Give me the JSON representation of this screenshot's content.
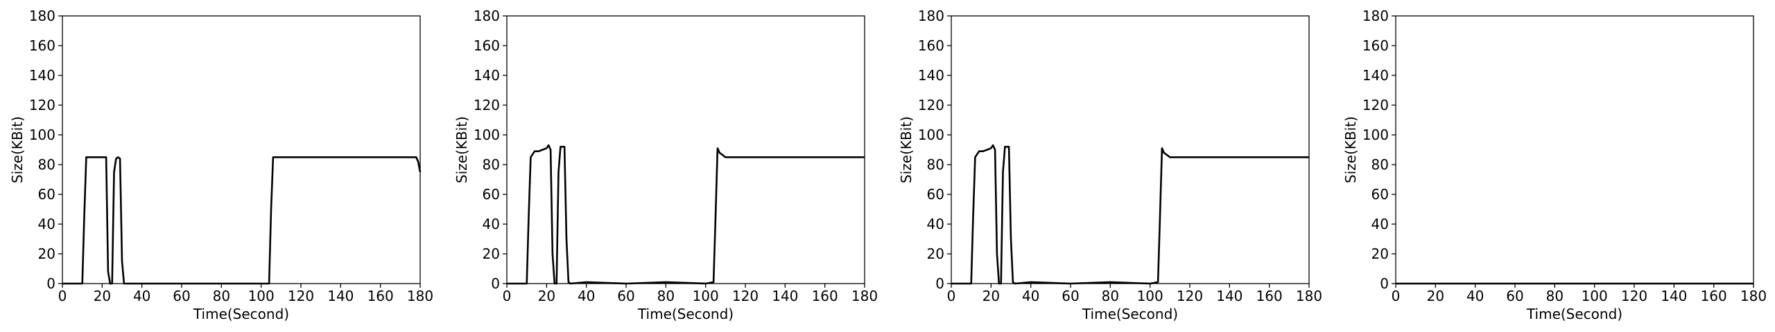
{
  "chart_data": [
    {
      "type": "line",
      "xlabel": "Time(Second)",
      "ylabel": "Size(KBit)",
      "xlim": [
        0,
        180
      ],
      "ylim": [
        0,
        180
      ],
      "xticks": [
        0,
        20,
        40,
        60,
        80,
        100,
        120,
        140,
        160,
        180
      ],
      "yticks": [
        0,
        20,
        40,
        60,
        80,
        100,
        120,
        140,
        160,
        180
      ],
      "grid": false,
      "line_color": "#000000",
      "series": [
        {
          "x": [
            0,
            10,
            11,
            12,
            13,
            16,
            20,
            22,
            23,
            24,
            25,
            26,
            27,
            28,
            29,
            30,
            31,
            32,
            40,
            60,
            80,
            100,
            104,
            105,
            106,
            108,
            120,
            140,
            160,
            178,
            179,
            180
          ],
          "y": [
            0,
            0,
            45,
            85,
            85,
            85,
            85,
            85,
            8,
            0,
            0,
            75,
            84,
            85,
            84,
            15,
            0,
            0,
            0,
            0,
            0,
            0,
            0,
            50,
            85,
            85,
            85,
            85,
            85,
            85,
            82,
            75
          ]
        }
      ]
    },
    {
      "type": "line",
      "xlabel": "Time(Second)",
      "ylabel": "Size(KBit)",
      "xlim": [
        0,
        180
      ],
      "ylim": [
        0,
        180
      ],
      "xticks": [
        0,
        20,
        40,
        60,
        80,
        100,
        120,
        140,
        160,
        180
      ],
      "yticks": [
        0,
        20,
        40,
        60,
        80,
        100,
        120,
        140,
        160,
        180
      ],
      "grid": false,
      "line_color": "#000000",
      "series": [
        {
          "x": [
            0,
            10,
            11,
            12,
            14,
            16,
            18,
            20,
            21,
            22,
            23,
            24,
            25,
            26,
            27,
            28,
            29,
            30,
            31,
            32,
            40,
            60,
            80,
            100,
            104,
            105,
            106,
            107,
            108,
            110,
            115,
            120,
            130,
            140,
            150,
            160,
            170,
            180
          ],
          "y": [
            0,
            0,
            45,
            85,
            89,
            89,
            90,
            91,
            93,
            90,
            20,
            0,
            0,
            75,
            92,
            92,
            92,
            30,
            1,
            0,
            1,
            0,
            1,
            0,
            1,
            45,
            91,
            88,
            87,
            85,
            85,
            85,
            85,
            85,
            85,
            85,
            85,
            85
          ]
        }
      ]
    },
    {
      "type": "line",
      "xlabel": "Time(Second)",
      "ylabel": "Size(KBit)",
      "xlim": [
        0,
        180
      ],
      "ylim": [
        0,
        180
      ],
      "xticks": [
        0,
        20,
        40,
        60,
        80,
        100,
        120,
        140,
        160,
        180
      ],
      "yticks": [
        0,
        20,
        40,
        60,
        80,
        100,
        120,
        140,
        160,
        180
      ],
      "grid": false,
      "line_color": "#000000",
      "series": [
        {
          "x": [
            0,
            10,
            11,
            12,
            14,
            16,
            18,
            20,
            21,
            22,
            23,
            24,
            25,
            26,
            27,
            28,
            29,
            30,
            31,
            32,
            40,
            60,
            80,
            100,
            104,
            105,
            106,
            107,
            108,
            110,
            115,
            120,
            130,
            140,
            150,
            160,
            170,
            180
          ],
          "y": [
            0,
            0,
            45,
            85,
            89,
            89,
            90,
            91,
            93,
            90,
            20,
            0,
            0,
            75,
            92,
            92,
            92,
            30,
            1,
            0,
            1,
            0,
            1,
            0,
            1,
            45,
            91,
            88,
            87,
            85,
            85,
            85,
            85,
            85,
            85,
            85,
            85,
            85
          ]
        }
      ]
    },
    {
      "type": "line",
      "xlabel": "Time(Second)",
      "ylabel": "Size(KBit)",
      "xlim": [
        0,
        180
      ],
      "ylim": [
        0,
        180
      ],
      "xticks": [
        0,
        20,
        40,
        60,
        80,
        100,
        120,
        140,
        160,
        180
      ],
      "yticks": [
        0,
        20,
        40,
        60,
        80,
        100,
        120,
        140,
        160,
        180
      ],
      "grid": false,
      "line_color": "#000000",
      "series": [
        {
          "x": [
            0,
            180
          ],
          "y": [
            0,
            0
          ]
        }
      ]
    }
  ]
}
